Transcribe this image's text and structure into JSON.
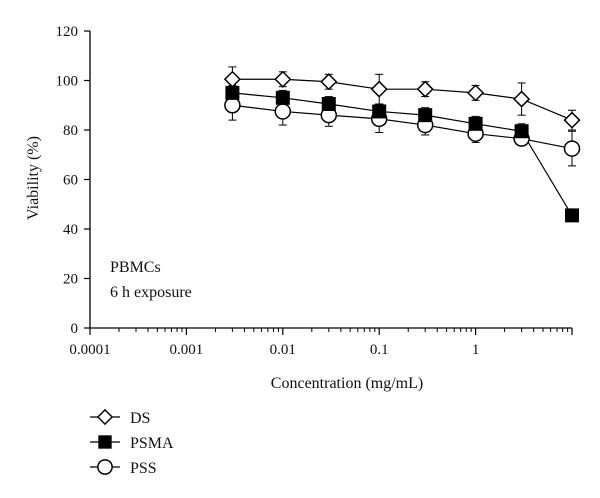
{
  "chart_data": {
    "type": "line",
    "title": "",
    "xlabel": "Concentration (mg/mL)",
    "ylabel": "Viability (%)",
    "xscale": "log",
    "xlim": [
      0.0001,
      10
    ],
    "ylim": [
      0,
      120
    ],
    "x_ticks": [
      {
        "value": 0.0001,
        "label": "0.0001"
      },
      {
        "value": 0.001,
        "label": "0.001"
      },
      {
        "value": 0.01,
        "label": "0.01"
      },
      {
        "value": 0.1,
        "label": "0.1"
      },
      {
        "value": 1,
        "label": "1"
      }
    ],
    "y_ticks": [
      0,
      20,
      40,
      60,
      80,
      100,
      120
    ],
    "grid": false,
    "legend_position": "bottom-left",
    "annotation": [
      "PBMCs",
      "6 h exposure"
    ],
    "x": [
      0.003,
      0.01,
      0.03,
      0.1,
      0.3,
      1,
      3,
      10
    ],
    "series": [
      {
        "name": "DS",
        "marker": "open-diamond",
        "values": [
          100.5,
          100.5,
          99.5,
          96.5,
          96.5,
          95,
          92.5,
          84
        ],
        "errors": [
          5,
          3,
          3,
          6,
          3,
          3,
          6.5,
          4
        ]
      },
      {
        "name": "PSMA",
        "marker": "filled-square",
        "values": [
          95,
          93,
          90.5,
          87.5,
          86,
          82.5,
          79.5,
          45.5
        ],
        "errors": [
          3,
          3,
          3,
          3,
          3,
          3,
          3,
          2
        ]
      },
      {
        "name": "PSS",
        "marker": "open-circle",
        "values": [
          90,
          87.5,
          86,
          84.5,
          82,
          78.5,
          76.5,
          72.5
        ],
        "errors": [
          6,
          5.5,
          4.5,
          5.5,
          4,
          3.5,
          2,
          7
        ]
      }
    ]
  }
}
